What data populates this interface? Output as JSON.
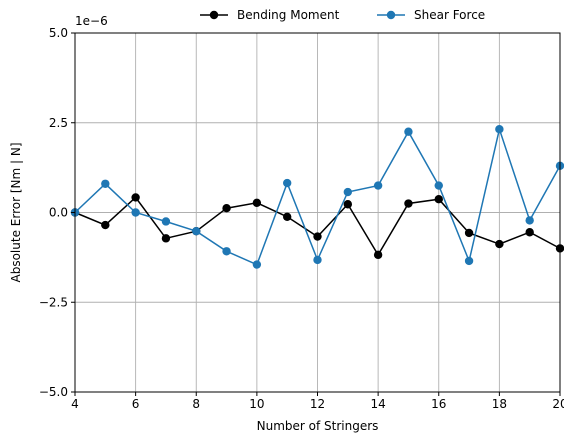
{
  "chart_data": {
    "type": "line",
    "xlabel": "Number of Stringers",
    "ylabel": "Absolute Error [Nm | N]",
    "y_scale_text": "1e−6",
    "xlim": [
      4,
      20
    ],
    "ylim": [
      -5.0,
      5.0
    ],
    "x_ticks": [
      4,
      6,
      8,
      10,
      12,
      14,
      16,
      18,
      20
    ],
    "x_tick_labels": [
      "4",
      "6",
      "8",
      "10",
      "12",
      "14",
      "16",
      "18",
      "20"
    ],
    "y_ticks": [
      -5.0,
      -2.5,
      0.0,
      2.5,
      5.0
    ],
    "y_tick_labels": [
      "−5.0",
      "−2.5",
      "0.0",
      "2.5",
      "5.0"
    ],
    "grid": true,
    "legend_position": "top, outside",
    "x": [
      4,
      5,
      6,
      7,
      8,
      9,
      10,
      11,
      12,
      13,
      14,
      15,
      16,
      17,
      18,
      19,
      20
    ],
    "series": [
      {
        "name": "Bending Moment",
        "color": "#000000",
        "values": [
          0.0,
          -0.35,
          0.42,
          -0.72,
          -0.52,
          0.12,
          0.27,
          -0.12,
          -0.67,
          0.23,
          -1.18,
          0.25,
          0.37,
          -0.57,
          -0.88,
          -0.55,
          -1.0
        ]
      },
      {
        "name": "Shear Force",
        "color": "#1f77b4",
        "values": [
          0.0,
          0.8,
          0.0,
          -0.25,
          -0.52,
          -1.08,
          -1.45,
          0.82,
          -1.32,
          0.57,
          0.75,
          2.25,
          0.75,
          -1.35,
          2.32,
          -0.22,
          1.3
        ]
      }
    ]
  }
}
